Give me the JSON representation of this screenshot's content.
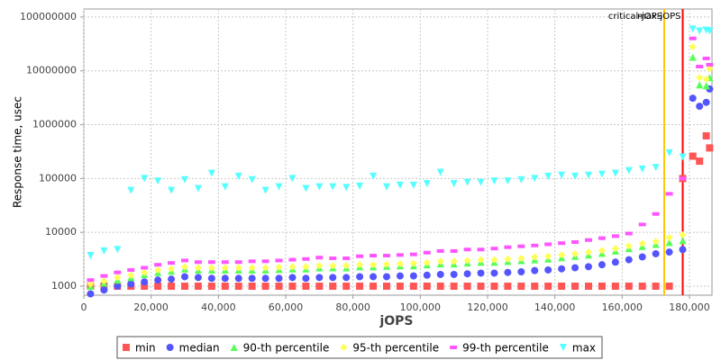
{
  "chart_data": {
    "type": "scatter",
    "ylabel": "Response time, usec",
    "xlabel": "jOPS",
    "log_y": true,
    "grid": true,
    "legend": "bottom",
    "xlim": [
      0,
      186700
    ],
    "ylim": [
      680,
      141000000
    ],
    "xticks": [
      0,
      {
        "value": 20000,
        "label": "20,000"
      },
      {
        "value": 40000,
        "label": "40,000"
      },
      {
        "value": 60000,
        "label": "60,000"
      },
      {
        "value": 80000,
        "label": "80,000"
      },
      {
        "value": 100000,
        "label": "100,000"
      },
      {
        "value": 120000,
        "label": "120,000"
      },
      {
        "value": 140000,
        "label": "140,000"
      },
      {
        "value": 160000,
        "label": "160,000"
      },
      {
        "value": 180000,
        "label": "180,000"
      }
    ],
    "yticks": [
      1000,
      10000,
      100000,
      1000000,
      10000000,
      100000000
    ],
    "annotations": [
      {
        "text": "critical-jOPS",
        "x": 172500,
        "color": "#ffc800"
      },
      {
        "text": "max-jOPS",
        "x": 178000,
        "color": "#ff0000"
      }
    ],
    "x": [
      2000,
      6000,
      10000,
      14000,
      18000,
      22000,
      26000,
      30000,
      34000,
      38000,
      42000,
      46000,
      50000,
      54000,
      58000,
      62000,
      66000,
      70000,
      74000,
      78000,
      82000,
      86000,
      90000,
      94000,
      98000,
      102000,
      106000,
      110000,
      114000,
      118000,
      122000,
      126000,
      130000,
      134000,
      138000,
      142000,
      146000,
      150000,
      154000,
      158000,
      162000,
      166000,
      170000,
      174000,
      178000,
      181000,
      183000,
      185000,
      186000
    ],
    "series": [
      {
        "name": "min",
        "color": "#ff5555",
        "marker": "square",
        "values": [
          1000,
          1000,
          1000,
          1000,
          1000,
          1000,
          1000,
          1000,
          1000,
          1000,
          1000,
          1000,
          1000,
          1000,
          1000,
          1000,
          1000,
          1000,
          1000,
          1000,
          1000,
          1000,
          1000,
          1000,
          1000,
          1000,
          1000,
          1000,
          1000,
          1000,
          1000,
          1000,
          1000,
          1000,
          1000,
          1000,
          1000,
          1000,
          1000,
          1000,
          1000,
          1000,
          1000,
          1000,
          100000,
          260000,
          210000,
          620000,
          370000
        ]
      },
      {
        "name": "median",
        "color": "#5555ff",
        "marker": "circle",
        "values": [
          720,
          850,
          1000,
          1100,
          1200,
          1300,
          1350,
          1500,
          1450,
          1400,
          1400,
          1400,
          1400,
          1400,
          1400,
          1450,
          1400,
          1450,
          1450,
          1450,
          1500,
          1500,
          1500,
          1550,
          1550,
          1600,
          1650,
          1650,
          1700,
          1750,
          1750,
          1800,
          1850,
          1950,
          2000,
          2100,
          2200,
          2300,
          2500,
          2800,
          3100,
          3500,
          4000,
          4300,
          4800,
          3100000,
          2200000,
          2600000,
          4600000
        ]
      },
      {
        "name": "90-th percentile",
        "color": "#55ff55",
        "marker": "triangle-up",
        "values": [
          1000,
          1150,
          1300,
          1450,
          1650,
          1800,
          1900,
          2100,
          2000,
          2000,
          2000,
          2000,
          2000,
          2000,
          2050,
          2100,
          2100,
          2200,
          2200,
          2200,
          2300,
          2300,
          2350,
          2400,
          2400,
          2500,
          2600,
          2600,
          2700,
          2800,
          2800,
          2900,
          3000,
          3100,
          3200,
          3400,
          3600,
          3800,
          4100,
          4500,
          5000,
          5500,
          6000,
          6500,
          7000,
          18000000,
          5500000,
          5300000,
          7500000
        ]
      },
      {
        "name": "95-th percentile",
        "color": "#ffff55",
        "marker": "diamond",
        "values": [
          1100,
          1250,
          1450,
          1600,
          1800,
          2000,
          2100,
          2300,
          2200,
          2200,
          2200,
          2200,
          2200,
          2200,
          2250,
          2300,
          2300,
          2400,
          2400,
          2400,
          2500,
          2500,
          2550,
          2600,
          2650,
          2750,
          2900,
          2900,
          3000,
          3100,
          3100,
          3200,
          3300,
          3500,
          3600,
          3800,
          4000,
          4300,
          4600,
          5000,
          5600,
          6200,
          6800,
          8000,
          9000,
          28000000,
          7500000,
          7000000,
          11000000
        ]
      },
      {
        "name": "99-th percentile",
        "color": "#ff55ff",
        "marker": "bar",
        "values": [
          1300,
          1550,
          1800,
          2000,
          2200,
          2500,
          2700,
          3000,
          2800,
          2800,
          2800,
          2800,
          2900,
          2900,
          3000,
          3100,
          3200,
          3400,
          3300,
          3300,
          3600,
          3700,
          3700,
          3800,
          3900,
          4200,
          4500,
          4500,
          4800,
          4800,
          5000,
          5300,
          5500,
          5700,
          6000,
          6300,
          6600,
          7200,
          7800,
          8500,
          9500,
          14000,
          22000,
          52000,
          100000,
          40000000,
          12000000,
          17000000,
          13000000
        ]
      },
      {
        "name": "max",
        "color": "#55ffff",
        "marker": "triangle-down",
        "values": [
          3700,
          4500,
          4800,
          60000,
          100000,
          90000,
          60000,
          95000,
          65000,
          125000,
          70000,
          110000,
          95000,
          60000,
          70000,
          100000,
          65000,
          70000,
          70000,
          68000,
          72000,
          110000,
          70000,
          75000,
          75000,
          80000,
          130000,
          80000,
          85000,
          85000,
          90000,
          90000,
          95000,
          100000,
          110000,
          115000,
          110000,
          115000,
          120000,
          125000,
          140000,
          150000,
          160000,
          300000,
          250000,
          60000000,
          55000000,
          57000000,
          55000000
        ]
      }
    ]
  }
}
